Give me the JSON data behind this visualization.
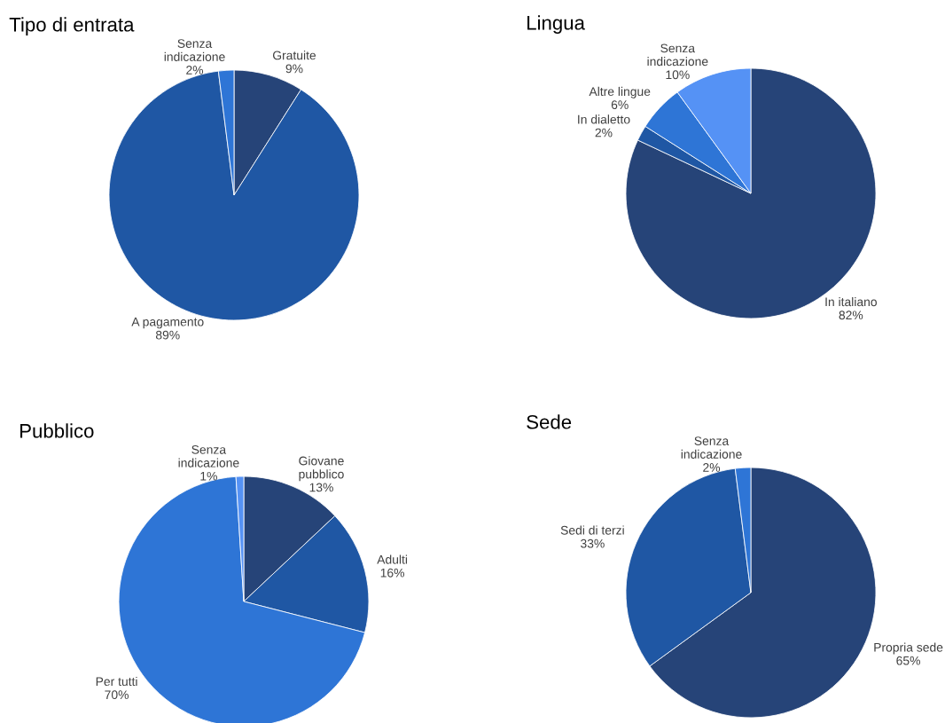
{
  "chart_data": [
    {
      "type": "pie",
      "title": "Tipo di entrata",
      "categories": [
        "Gratuite",
        "A pagamento",
        "Senza indicazione"
      ],
      "values": [
        9,
        89,
        2
      ],
      "value_labels": [
        "9%",
        "89%",
        "2%"
      ],
      "colors": [
        "#264478",
        "#1f57a4",
        "#2e75d6"
      ]
    },
    {
      "type": "pie",
      "title": "Lingua",
      "categories": [
        "In italiano",
        "In dialetto",
        "Altre lingue",
        "Senza indicazione"
      ],
      "values": [
        82,
        2,
        6,
        10
      ],
      "value_labels": [
        "82%",
        "2%",
        "6%",
        "10%"
      ],
      "colors": [
        "#264478",
        "#1f57a4",
        "#2e75d6",
        "#5592f5"
      ]
    },
    {
      "type": "pie",
      "title": "Pubblico",
      "categories": [
        "Giovane pubblico",
        "Adulti",
        "Per tutti",
        "Senza indicazione"
      ],
      "values": [
        13,
        16,
        70,
        1
      ],
      "value_labels": [
        "13%",
        "16%",
        "70%",
        "1%"
      ],
      "colors": [
        "#264478",
        "#1f57a4",
        "#2e75d6",
        "#5592f5"
      ]
    },
    {
      "type": "pie",
      "title": "Sede",
      "categories": [
        "Propria sede",
        "Sedi di terzi",
        "Senza indicazione"
      ],
      "values": [
        65,
        33,
        2
      ],
      "value_labels": [
        "65%",
        "33%",
        "2%"
      ],
      "colors": [
        "#264478",
        "#1f57a4",
        "#2e75d6"
      ]
    }
  ]
}
